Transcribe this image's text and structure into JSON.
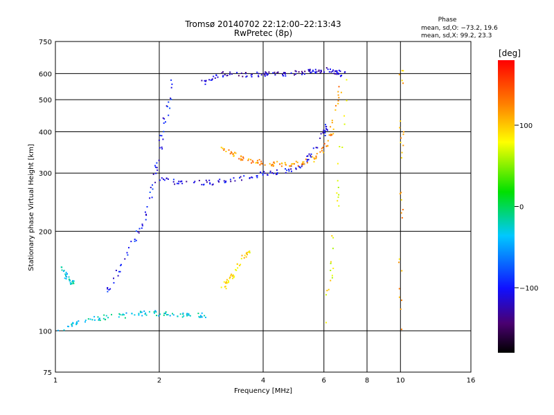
{
  "header": {
    "title_line1": "Tromsø 20140702 22:12:00–22:13:43",
    "title_line2": "RwPretec (8p)",
    "phase_heading": "Phase",
    "phase_o": "mean, sd,O: −73.2, 19.6",
    "phase_x": "mean, sd,X:  99.2, 23.3"
  },
  "colorbar": {
    "unit_label": "[deg]",
    "ticks": [
      "100",
      "0",
      "−100"
    ],
    "tick_values": [
      100,
      0,
      -100
    ],
    "range": [
      -180,
      180
    ]
  },
  "chart_data": {
    "type": "scatter",
    "title": "Tromsø 20140702 22:12:00–22:13:43",
    "subtitle": "RwPretec (8p)",
    "xlabel": "Frequency [MHz]",
    "ylabel": "Stationary phase Virtual Height [km]",
    "xscale": "log",
    "yscale": "log",
    "xlim": [
      1,
      16
    ],
    "ylim": [
      75,
      750
    ],
    "xticks": [
      1,
      2,
      4,
      6,
      8,
      10,
      16
    ],
    "xtick_labels": [
      "1",
      "2",
      "4",
      "6",
      "8",
      "10",
      "16"
    ],
    "yticks": [
      75,
      100,
      200,
      300,
      400,
      500,
      600,
      750
    ],
    "ytick_labels": [
      "75",
      "100",
      "200",
      "300",
      "400",
      "500",
      "600",
      "750"
    ],
    "grid": true,
    "color_scale": "phase [deg], rainbow from black (−180) through blue, cyan, green, yellow to red (+180)",
    "traces": [
      {
        "x": [
          1.0,
          1.15,
          1.35,
          1.6,
          1.85,
          2.1,
          2.4,
          2.7
        ],
        "y": [
          100,
          106,
          110,
          112,
          114,
          113,
          112,
          112
        ],
        "phase_mean": -30
      },
      {
        "x": [
          1.05,
          1.08,
          1.12
        ],
        "y": [
          155,
          145,
          140
        ],
        "phase_mean": -30
      },
      {
        "x": [
          1.4,
          1.6,
          1.8,
          1.95,
          2.05,
          2.2
        ],
        "y": [
          130,
          170,
          220,
          300,
          420,
          600
        ],
        "phase_mean": -100
      },
      {
        "x": [
          2.0,
          2.3,
          2.8,
          3.4,
          4.0,
          4.6,
          5.2,
          5.7,
          6.1
        ],
        "y": [
          290,
          280,
          282,
          290,
          300,
          305,
          320,
          360,
          420
        ],
        "phase_mean": -110
      },
      {
        "x": [
          2.6,
          3.0,
          3.5,
          4.0,
          4.5,
          5.0,
          5.5,
          6.0,
          6.5,
          6.8
        ],
        "y": [
          560,
          600,
          598,
          600,
          602,
          605,
          610,
          620,
          610,
          600
        ],
        "phase_mean": -120
      },
      {
        "x": [
          3.0,
          3.3,
          3.7,
          4.1,
          4.6,
          5.2,
          5.8,
          6.3,
          6.7
        ],
        "y": [
          360,
          340,
          328,
          322,
          320,
          322,
          340,
          400,
          560
        ],
        "phase_mean": 120
      },
      {
        "x": [
          3.05,
          3.2,
          3.4,
          3.6
        ],
        "y": [
          135,
          145,
          160,
          175
        ],
        "phase_mean": 90
      },
      {
        "x": [
          9.9,
          10.0,
          10.05
        ],
        "y": [
          100,
          300,
          620
        ],
        "phase_mean": 110
      },
      {
        "x": [
          6.0,
          6.5,
          7.0
        ],
        "y": [
          95,
          240,
          640
        ],
        "phase_mean": 80
      }
    ]
  }
}
